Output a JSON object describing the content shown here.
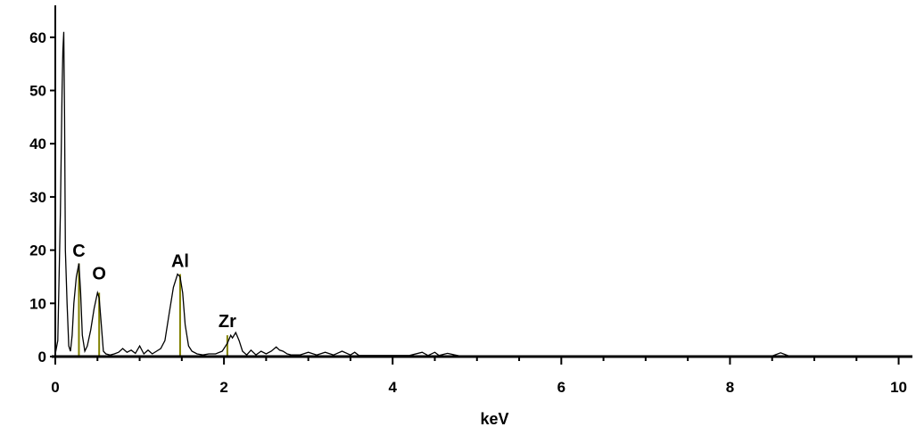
{
  "chart_data": {
    "type": "line",
    "title": "",
    "xlabel": "keV",
    "ylabel": "",
    "xlim": [
      0,
      10.1
    ],
    "ylim": [
      0,
      66
    ],
    "grid": false,
    "legend": "none",
    "line_color": "#000000",
    "marker_color": "#808000",
    "x_ticks": [
      0,
      2,
      4,
      6,
      8,
      10
    ],
    "y_ticks": [
      0,
      10,
      20,
      30,
      40,
      50,
      60
    ],
    "x_tick_labels": [
      "0",
      "2",
      "4",
      "6",
      "8",
      "10"
    ],
    "y_tick_labels": [
      "0",
      "10",
      "20",
      "30",
      "40",
      "50",
      "60"
    ],
    "series": [
      {
        "x": [
          0.0,
          0.03,
          0.06,
          0.08,
          0.09,
          0.1,
          0.11,
          0.12,
          0.14,
          0.16,
          0.18,
          0.2,
          0.22,
          0.25,
          0.28,
          0.3,
          0.32,
          0.35,
          0.38,
          0.42,
          0.46,
          0.5,
          0.52,
          0.54,
          0.57,
          0.6,
          0.65,
          0.7,
          0.75,
          0.8,
          0.85,
          0.9,
          0.95,
          1.0,
          1.05,
          1.1,
          1.15,
          1.2,
          1.25,
          1.3,
          1.35,
          1.4,
          1.45,
          1.48,
          1.51,
          1.54,
          1.58,
          1.62,
          1.68,
          1.75,
          1.82,
          1.9,
          1.98,
          2.04,
          2.08,
          2.1,
          2.14,
          2.18,
          2.22,
          2.27,
          2.32,
          2.38,
          2.44,
          2.5,
          2.56,
          2.62,
          2.66,
          2.7,
          2.75,
          2.8,
          2.9,
          3.0,
          3.1,
          3.2,
          3.3,
          3.4,
          3.5,
          3.55,
          3.6,
          3.8,
          4.0,
          4.2,
          4.35,
          4.42,
          4.5,
          4.55,
          4.65,
          4.8,
          5.5,
          6.5,
          7.5,
          8.5,
          8.6,
          8.7,
          9.0,
          9.5,
          10.1
        ],
        "y": [
          0.5,
          3,
          27,
          50,
          57.5,
          61,
          45,
          20,
          10,
          2,
          1,
          4,
          10,
          15,
          17.5,
          12,
          4,
          1,
          2,
          5,
          9,
          12,
          11,
          7,
          1,
          0.5,
          0.3,
          0.5,
          0.8,
          1.5,
          0.8,
          1.2,
          0.6,
          2,
          0.5,
          1.2,
          0.5,
          1.0,
          1.5,
          3,
          8,
          13,
          15.5,
          15,
          12,
          6,
          2,
          1,
          0.5,
          0.3,
          0.5,
          0.5,
          1,
          2.5,
          4,
          3.5,
          4.5,
          3,
          1,
          0.3,
          1.2,
          0.3,
          1.0,
          0.5,
          1.0,
          1.8,
          1.2,
          1.0,
          0.5,
          0.3,
          0.3,
          0.8,
          0.3,
          0.8,
          0.3,
          1.0,
          0.3,
          0.8,
          0.2,
          0.2,
          0.2,
          0.2,
          0.8,
          0.2,
          0.8,
          0.2,
          0.6,
          0.1,
          0.1,
          0.1,
          0.1,
          0.1,
          0.7,
          0.1,
          0.1,
          0.1,
          0.1
        ]
      }
    ],
    "peak_labels": [
      {
        "label": "C",
        "x": 0.28,
        "line_top": 17.5,
        "text_y": 18.8
      },
      {
        "label": "O",
        "x": 0.52,
        "line_top": 12,
        "text_y": 14.5
      },
      {
        "label": "Al",
        "x": 1.48,
        "line_top": 15.5,
        "text_y": 16.8
      },
      {
        "label": "Zr",
        "x": 2.04,
        "line_top": 4,
        "text_y": 5.5
      }
    ]
  }
}
